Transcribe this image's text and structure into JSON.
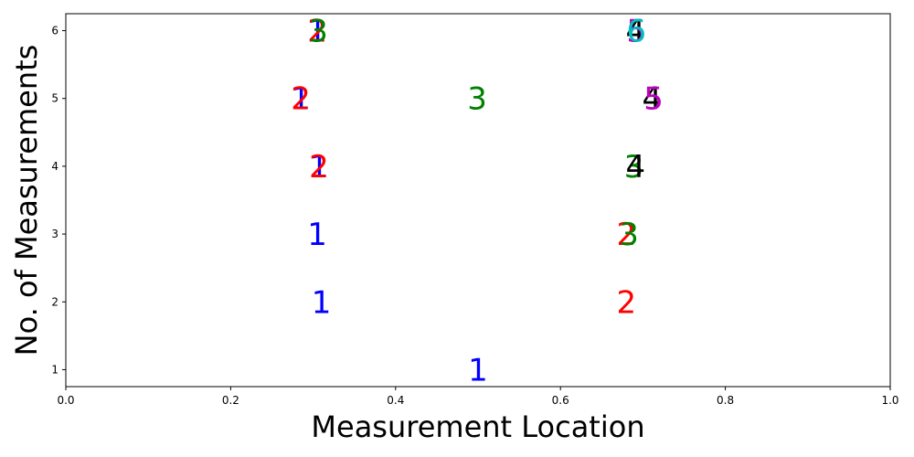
{
  "chart_data": {
    "type": "scatter",
    "title": "",
    "xlabel": "Measurement Location",
    "ylabel": "No. of Measurements",
    "xlim": [
      0.0,
      1.0
    ],
    "ylim": [
      0.75,
      6.25
    ],
    "xticks": [
      "0.0",
      "0.2",
      "0.4",
      "0.6",
      "0.8",
      "1.0"
    ],
    "yticks": [
      "1",
      "2",
      "3",
      "4",
      "5",
      "6"
    ],
    "grid": false,
    "legend": "none",
    "colors": {
      "1": "#0000ff",
      "2": "#ff0000",
      "3": "#008000",
      "4": "#000000",
      "5": "#bf00bf",
      "6": "#00bfbf"
    },
    "points": [
      {
        "x": 0.5,
        "y": 1,
        "label": "1",
        "color": "#0000ff"
      },
      {
        "x": 0.31,
        "y": 2,
        "label": "1",
        "color": "#0000ff"
      },
      {
        "x": 0.68,
        "y": 2,
        "label": "2",
        "color": "#ff0000"
      },
      {
        "x": 0.305,
        "y": 3,
        "label": "1",
        "color": "#0000ff"
      },
      {
        "x": 0.68,
        "y": 3,
        "label": "2",
        "color": "#ff0000"
      },
      {
        "x": 0.683,
        "y": 3,
        "label": "3",
        "color": "#008000"
      },
      {
        "x": 0.307,
        "y": 4,
        "label": "1",
        "color": "#0000ff"
      },
      {
        "x": 0.307,
        "y": 4,
        "label": "2",
        "color": "#ff0000"
      },
      {
        "x": 0.689,
        "y": 4,
        "label": "3",
        "color": "#008000"
      },
      {
        "x": 0.691,
        "y": 4,
        "label": "4",
        "color": "#000000"
      },
      {
        "x": 0.285,
        "y": 5,
        "label": "1",
        "color": "#0000ff"
      },
      {
        "x": 0.285,
        "y": 5,
        "label": "2",
        "color": "#ff0000"
      },
      {
        "x": 0.499,
        "y": 5,
        "label": "3",
        "color": "#008000"
      },
      {
        "x": 0.711,
        "y": 5,
        "label": "4",
        "color": "#000000"
      },
      {
        "x": 0.713,
        "y": 5,
        "label": "5",
        "color": "#bf00bf"
      },
      {
        "x": 0.305,
        "y": 6,
        "label": "1",
        "color": "#0000ff"
      },
      {
        "x": 0.305,
        "y": 6,
        "label": "2",
        "color": "#ff0000"
      },
      {
        "x": 0.306,
        "y": 6,
        "label": "3",
        "color": "#008000"
      },
      {
        "x": 0.691,
        "y": 6,
        "label": "4",
        "color": "#000000"
      },
      {
        "x": 0.692,
        "y": 6,
        "label": "5",
        "color": "#bf00bf"
      },
      {
        "x": 0.692,
        "y": 6,
        "label": "6",
        "color": "#00bfbf"
      }
    ]
  }
}
